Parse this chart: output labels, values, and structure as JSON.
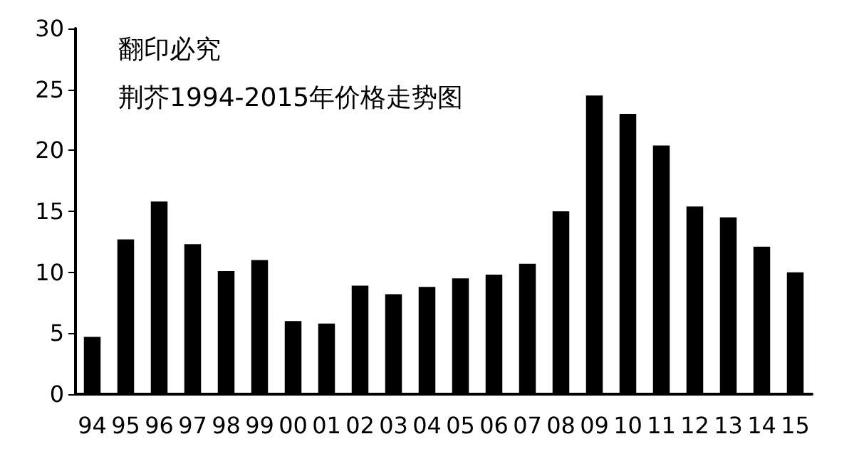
{
  "chart_data": {
    "type": "bar",
    "title": "荆芥1994-2015年价格走势图",
    "annotations": [
      "翻印必究"
    ],
    "categories": [
      "94",
      "95",
      "96",
      "97",
      "98",
      "99",
      "00",
      "01",
      "02",
      "03",
      "04",
      "05",
      "06",
      "07",
      "08",
      "09",
      "10",
      "11",
      "12",
      "13",
      "14",
      "15"
    ],
    "values": [
      4.7,
      12.7,
      15.8,
      12.3,
      10.1,
      11.0,
      6.0,
      5.8,
      8.9,
      8.2,
      8.8,
      9.5,
      9.8,
      10.7,
      15.0,
      24.5,
      23.0,
      20.4,
      15.4,
      14.5,
      12.1,
      10.0
    ],
    "color": "#000000",
    "ylim": [
      0,
      30
    ],
    "yticks": [
      0,
      5,
      10,
      15,
      20,
      25,
      30
    ],
    "grid": false
  }
}
